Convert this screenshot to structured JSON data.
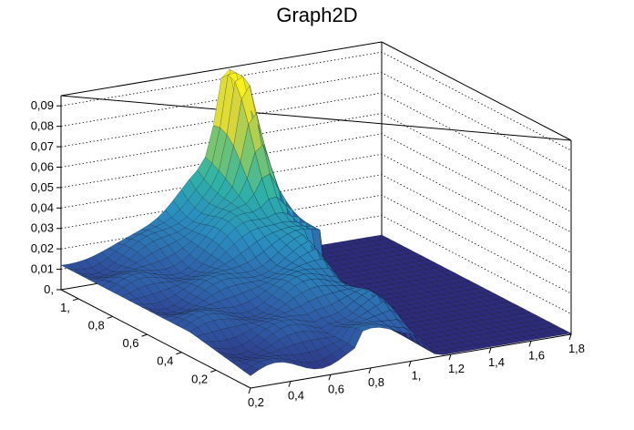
{
  "chart_data": {
    "type": "surface",
    "title": "Graph2D",
    "x_ticks": [
      "0,2",
      "0,4",
      "0,6",
      "0,8",
      "1,",
      "1,2",
      "1,4",
      "1,6",
      "1,8"
    ],
    "y_ticks": [
      "0,2",
      "0,4",
      "0,6",
      "0,8",
      "1,"
    ],
    "z_ticks": [
      "0,",
      "0,01",
      "0,02",
      "0,03",
      "0,04",
      "0,05",
      "0,06",
      "0,07",
      "0,08",
      "0,09"
    ],
    "xlim": [
      0.2,
      1.8
    ],
    "ylim": [
      0.0,
      1.1
    ],
    "zlim": [
      0.0,
      0.095
    ],
    "grid": true,
    "colormap": [
      "#2d2a7b",
      "#2f5da8",
      "#2a8ec0",
      "#2fb3a5",
      "#7cc66d",
      "#d6d53e",
      "#f9f21c"
    ],
    "mesh_color": "#000000",
    "frame_color": "#000000"
  }
}
